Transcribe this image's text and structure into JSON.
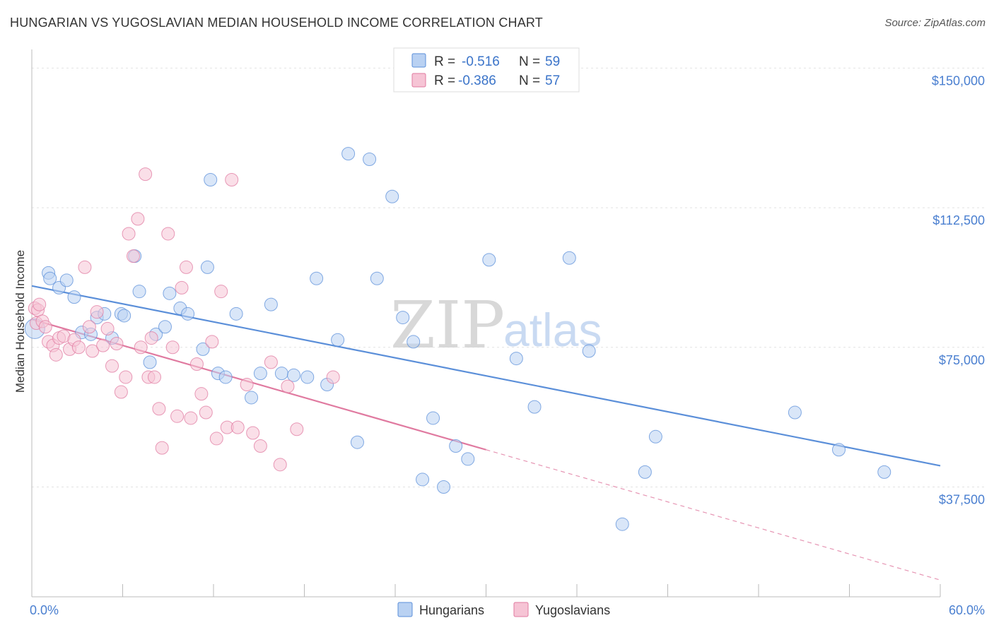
{
  "chart_data": {
    "type": "scatter",
    "title": "HUNGARIAN VS YUGOSLAVIAN MEDIAN HOUSEHOLD INCOME CORRELATION CHART",
    "source": "Source: ZipAtlas.com",
    "ylabel": "Median Household Income",
    "xlim": [
      0,
      60
    ],
    "ylim": [
      8000,
      155000
    ],
    "x_tick_labels": [
      "0.0%",
      "60.0%"
    ],
    "y_ticks": [
      {
        "value": 37500,
        "label": "$37,500"
      },
      {
        "value": 75000,
        "label": "$75,000"
      },
      {
        "value": 112500,
        "label": "$112,500"
      },
      {
        "value": 150000,
        "label": "$150,000"
      }
    ],
    "grid": true,
    "legend_top": [
      {
        "swatch": "hungarians",
        "r_label": "R =",
        "r_value": "-0.516",
        "n_label": "N =",
        "n_value": "59"
      },
      {
        "swatch": "yugoslavians",
        "r_label": "R =",
        "r_value": "-0.386",
        "n_label": "N =",
        "n_value": "57"
      }
    ],
    "watermark": {
      "zip": "ZIP",
      "atlas": "atlas"
    },
    "series": [
      {
        "name": "Hungarians",
        "color": "#5b8fd9",
        "fill": "#b9d1f2",
        "trend": {
          "x": [
            0,
            60
          ],
          "y": [
            91500,
            43200
          ],
          "solid_until": 60
        },
        "points": [
          [
            0.2,
            80000
          ],
          [
            1.1,
            95000
          ],
          [
            1.2,
            93500
          ],
          [
            1.8,
            91000
          ],
          [
            2.3,
            93000
          ],
          [
            2.8,
            88500
          ],
          [
            3.3,
            79000
          ],
          [
            3.9,
            78500
          ],
          [
            4.3,
            83000
          ],
          [
            4.8,
            84000
          ],
          [
            5.3,
            77500
          ],
          [
            5.9,
            84000
          ],
          [
            6.1,
            83500
          ],
          [
            6.8,
            99500
          ],
          [
            7.1,
            90000
          ],
          [
            7.8,
            71000
          ],
          [
            8.2,
            78500
          ],
          [
            8.8,
            80500
          ],
          [
            9.1,
            89500
          ],
          [
            9.8,
            85500
          ],
          [
            10.3,
            84000
          ],
          [
            11.3,
            74500
          ],
          [
            11.6,
            96500
          ],
          [
            11.8,
            120000
          ],
          [
            12.3,
            68000
          ],
          [
            12.8,
            67000
          ],
          [
            13.5,
            84000
          ],
          [
            14.5,
            61500
          ],
          [
            15.1,
            68000
          ],
          [
            15.8,
            86500
          ],
          [
            16.5,
            68000
          ],
          [
            17.3,
            67500
          ],
          [
            18.2,
            67000
          ],
          [
            18.8,
            93500
          ],
          [
            19.5,
            65000
          ],
          [
            20.2,
            77000
          ],
          [
            20.9,
            127000
          ],
          [
            21.5,
            49500
          ],
          [
            22.3,
            125500
          ],
          [
            22.8,
            93500
          ],
          [
            23.8,
            115500
          ],
          [
            24.5,
            83000
          ],
          [
            25.2,
            76500
          ],
          [
            25.8,
            39500
          ],
          [
            26.5,
            56000
          ],
          [
            27.2,
            37500
          ],
          [
            28.0,
            48500
          ],
          [
            28.8,
            45000
          ],
          [
            30.2,
            98500
          ],
          [
            32.0,
            72000
          ],
          [
            33.2,
            59000
          ],
          [
            35.5,
            99000
          ],
          [
            36.8,
            74000
          ],
          [
            39.0,
            27500
          ],
          [
            40.5,
            41500
          ],
          [
            41.2,
            51000
          ],
          [
            50.4,
            57500
          ],
          [
            53.3,
            47500
          ],
          [
            56.3,
            41500
          ]
        ]
      },
      {
        "name": "Yugoslavians",
        "color": "#e07aa0",
        "fill": "#f6c4d5",
        "trend": {
          "x": [
            0,
            60
          ],
          "y": [
            82500,
            12500
          ],
          "solid_until": 30
        },
        "points": [
          [
            0.2,
            85500
          ],
          [
            0.3,
            81500
          ],
          [
            0.4,
            85000
          ],
          [
            0.5,
            86500
          ],
          [
            0.7,
            82000
          ],
          [
            0.9,
            80500
          ],
          [
            1.1,
            76500
          ],
          [
            1.4,
            75500
          ],
          [
            1.6,
            73000
          ],
          [
            1.8,
            77500
          ],
          [
            2.1,
            78000
          ],
          [
            2.5,
            74500
          ],
          [
            2.8,
            77000
          ],
          [
            3.1,
            75000
          ],
          [
            3.5,
            96500
          ],
          [
            3.8,
            80500
          ],
          [
            4.0,
            74000
          ],
          [
            4.3,
            84500
          ],
          [
            4.7,
            75500
          ],
          [
            5.0,
            80000
          ],
          [
            5.3,
            70000
          ],
          [
            5.6,
            76000
          ],
          [
            5.9,
            63000
          ],
          [
            6.2,
            67000
          ],
          [
            6.4,
            105500
          ],
          [
            6.7,
            99500
          ],
          [
            7.0,
            109500
          ],
          [
            7.2,
            75000
          ],
          [
            7.5,
            121500
          ],
          [
            7.7,
            67000
          ],
          [
            7.9,
            77500
          ],
          [
            8.1,
            67000
          ],
          [
            8.4,
            58500
          ],
          [
            8.6,
            48000
          ],
          [
            9.0,
            105500
          ],
          [
            9.3,
            75000
          ],
          [
            9.6,
            56500
          ],
          [
            9.9,
            91000
          ],
          [
            10.2,
            96500
          ],
          [
            10.5,
            56000
          ],
          [
            10.9,
            70500
          ],
          [
            11.2,
            62500
          ],
          [
            11.5,
            57500
          ],
          [
            11.9,
            76500
          ],
          [
            12.2,
            50500
          ],
          [
            12.5,
            90000
          ],
          [
            12.9,
            53500
          ],
          [
            13.2,
            120000
          ],
          [
            13.6,
            53500
          ],
          [
            14.2,
            65000
          ],
          [
            14.6,
            52000
          ],
          [
            15.1,
            48500
          ],
          [
            15.8,
            71000
          ],
          [
            16.4,
            43500
          ],
          [
            16.9,
            64500
          ],
          [
            17.5,
            53000
          ],
          [
            19.9,
            67000
          ]
        ]
      }
    ]
  },
  "bottom_legend": [
    {
      "key": "hungarians",
      "label": "Hungarians"
    },
    {
      "key": "yugoslavians",
      "label": "Yugoslavians"
    }
  ]
}
